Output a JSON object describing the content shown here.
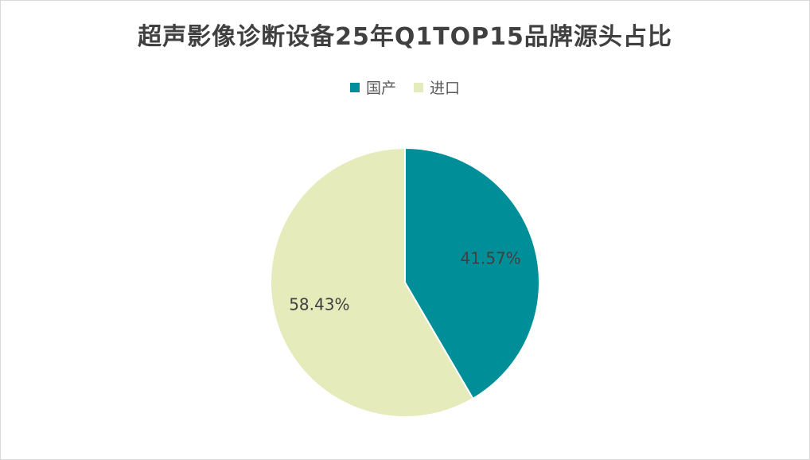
{
  "chart_data": {
    "type": "pie",
    "title": "超声影像诊断设备25年Q1TOP15品牌源头占比",
    "legend_position": "top",
    "slices": [
      {
        "name": "国产",
        "value": 41.57,
        "label": "41.57%",
        "color": "#008f98"
      },
      {
        "name": "进口",
        "value": 58.43,
        "label": "58.43%",
        "color": "#e6ebbb"
      }
    ]
  }
}
